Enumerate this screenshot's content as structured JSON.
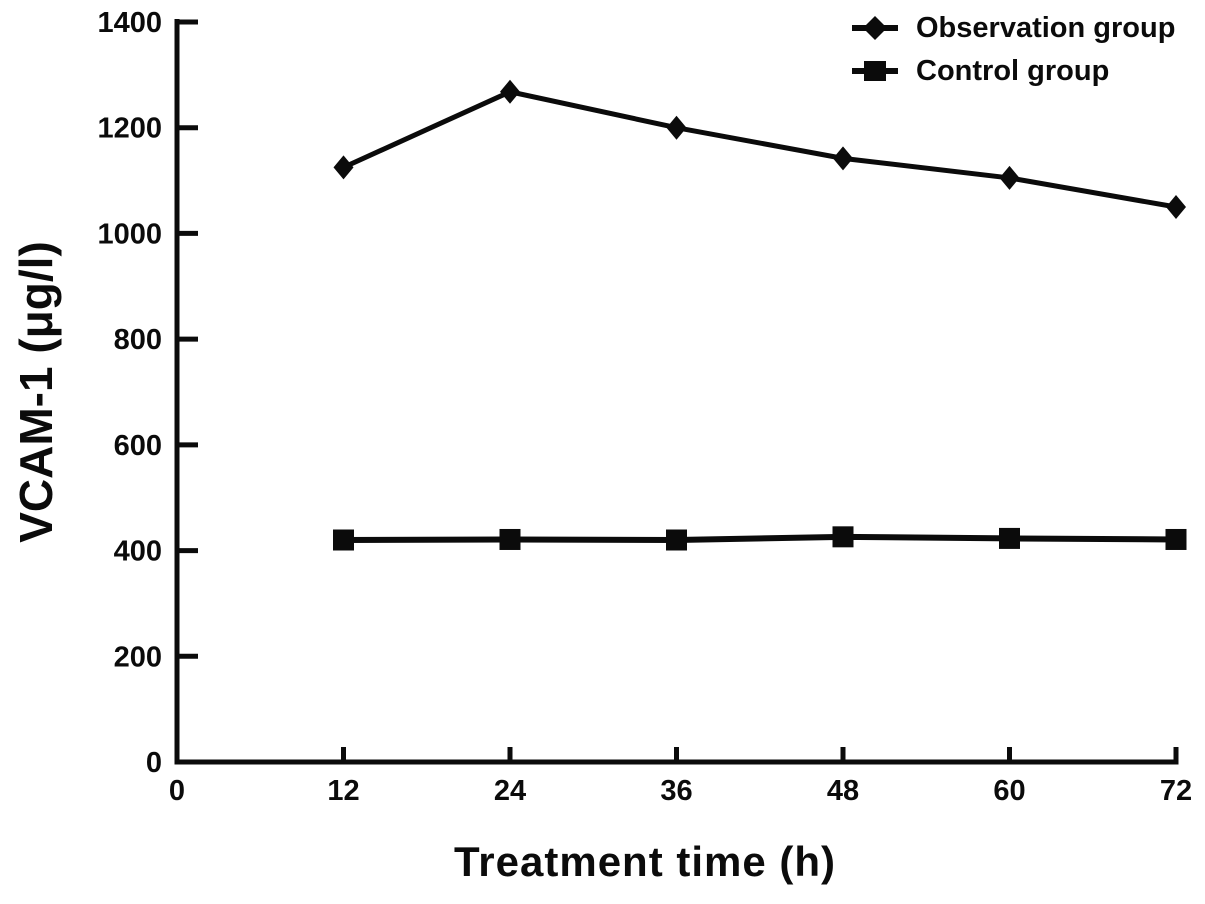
{
  "chart_data": {
    "type": "line",
    "title": "",
    "xlabel": "Treatment time (h)",
    "ylabel": "VCAM-1 (μg/l)",
    "x": [
      12,
      24,
      36,
      48,
      60,
      72
    ],
    "x_ticks": [
      0,
      12,
      24,
      36,
      48,
      60,
      72
    ],
    "y_ticks": [
      0,
      200,
      400,
      600,
      800,
      1000,
      1200,
      1400
    ],
    "xlim": [
      0,
      72
    ],
    "ylim": [
      0,
      1400
    ],
    "grid": false,
    "legend_position": "top-right",
    "line_color": "#0b0b0b",
    "background_color": "#ffffff",
    "series": [
      {
        "name": "Observation group",
        "marker": "diamond",
        "values": [
          1125,
          1268,
          1200,
          1142,
          1105,
          1050
        ]
      },
      {
        "name": "Control group",
        "marker": "square",
        "values": [
          420,
          421,
          420,
          426,
          423,
          421
        ]
      }
    ]
  }
}
